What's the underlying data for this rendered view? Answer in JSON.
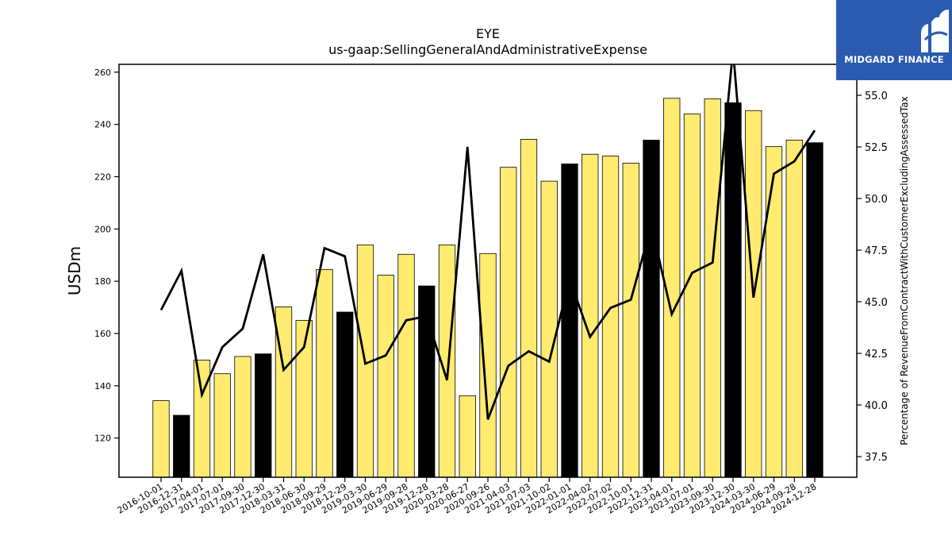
{
  "chart_data": {
    "type": "bar+line",
    "title": "EYE",
    "subtitle": "us-gaap:SellingGeneralAndAdministrativeExpense",
    "ylabel": "USDm",
    "y2label": "Percentage of RevenueFromContractWithCustomerExcludingAssessedTax",
    "ylim": [
      105,
      263
    ],
    "y2lim": [
      36.5,
      56.5
    ],
    "yticks": [
      120,
      140,
      160,
      180,
      200,
      220,
      240,
      260
    ],
    "y2ticks": [
      "37.5",
      "40.0",
      "42.5",
      "45.0",
      "47.5",
      "50.0",
      "52.5",
      "55.0"
    ],
    "categories": [
      "2016-10-01",
      "2016-12-31",
      "2017-04-01",
      "2017-07-01",
      "2017-09-30",
      "2017-12-30",
      "2018-03-31",
      "2018-06-30",
      "2018-09-29",
      "2018-12-29",
      "2019-03-30",
      "2019-06-29",
      "2019-09-28",
      "2019-12-28",
      "2020-03-28",
      "2020-06-27",
      "2020-09-26",
      "2021-04-03",
      "2021-07-03",
      "2021-10-02",
      "2022-01-01",
      "2022-04-02",
      "2022-07-02",
      "2022-10-01",
      "2022-12-31",
      "2023-04-01",
      "2023-07-01",
      "2023-09-30",
      "2023-12-30",
      "2024-03-30",
      "2024-06-29",
      "2024-09-28",
      "2024-12-28"
    ],
    "series": [
      {
        "kind": "bar",
        "values": [
          134.3,
          128.7,
          149.8,
          144.6,
          151.2,
          152.2,
          170.2,
          165.0,
          184.5,
          168.2,
          193.9,
          182.3,
          190.3,
          178.2,
          193.9,
          136.2,
          190.6,
          223.6,
          234.3,
          218.3,
          224.9,
          228.6,
          227.9,
          225.2,
          234.0,
          250.0,
          244.0,
          249.8,
          248.3,
          245.3,
          231.5,
          234.0,
          233.0
        ],
        "colors": [
          "#ffeb70",
          "#000000",
          "#ffeb70",
          "#ffeb70",
          "#ffeb70",
          "#000000",
          "#ffeb70",
          "#ffeb70",
          "#ffeb70",
          "#000000",
          "#ffeb70",
          "#ffeb70",
          "#ffeb70",
          "#000000",
          "#ffeb70",
          "#ffeb70",
          "#ffeb70",
          "#ffeb70",
          "#ffeb70",
          "#ffeb70",
          "#000000",
          "#ffeb70",
          "#ffeb70",
          "#ffeb70",
          "#000000",
          "#ffeb70",
          "#ffeb70",
          "#ffeb70",
          "#000000",
          "#ffeb70",
          "#ffeb70",
          "#ffeb70",
          "#000000"
        ]
      },
      {
        "kind": "line",
        "axis": "right",
        "color": "#000000",
        "values": [
          44.6,
          46.5,
          40.5,
          42.8,
          43.7,
          47.3,
          41.7,
          42.8,
          47.6,
          47.2,
          42.0,
          42.4,
          44.1,
          44.3,
          41.2,
          52.5,
          39.3,
          41.9,
          42.6,
          42.1,
          46.1,
          43.3,
          44.7,
          45.1,
          48.7,
          44.4,
          46.4,
          46.9,
          57.2,
          45.2,
          51.2,
          51.8,
          53.3
        ]
      }
    ]
  },
  "logo": {
    "text": "MIDGARD FINANCE"
  }
}
